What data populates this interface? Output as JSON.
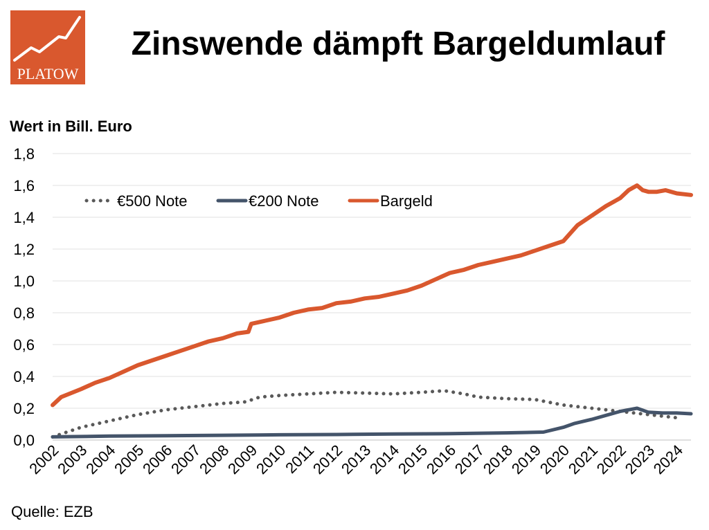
{
  "title": "Zinswende dämpft Bargeldumlauf",
  "logo": {
    "text": "PLATOW",
    "bg_color": "#D9582E"
  },
  "source": "Quelle: EZB",
  "chart_data": {
    "type": "line",
    "title": "Zinswende dämpft Bargeldumlauf",
    "ylabel": "Wert in Bill. Euro",
    "xlabel": "",
    "ylim": [
      0,
      1.8
    ],
    "yticks": [
      "0,0",
      "0,2",
      "0,4",
      "0,6",
      "0,8",
      "1,0",
      "1,2",
      "1,4",
      "1,6",
      "1,8"
    ],
    "xlim": [
      2002,
      2024.5
    ],
    "xticks": [
      "2002",
      "2003",
      "2004",
      "2005",
      "2006",
      "2007",
      "2008",
      "2009",
      "2010",
      "2011",
      "2012",
      "2013",
      "2014",
      "2015",
      "2016",
      "2017",
      "2018",
      "2019",
      "2020",
      "2021",
      "2022",
      "2023",
      "2024"
    ],
    "grid": "horizontal",
    "legend_position": "top-left",
    "series": [
      {
        "name": "€500 Note",
        "color": "#595959",
        "style": "dotted",
        "x": [
          2002,
          2002.5,
          2003,
          2004,
          2005,
          2006,
          2007,
          2008,
          2008.8,
          2009.3,
          2010,
          2011,
          2012,
          2013,
          2014,
          2015,
          2015.8,
          2016.5,
          2017,
          2018,
          2019,
          2020,
          2021,
          2022,
          2023,
          2024
        ],
        "y": [
          0.02,
          0.05,
          0.08,
          0.12,
          0.16,
          0.19,
          0.21,
          0.23,
          0.24,
          0.27,
          0.28,
          0.29,
          0.3,
          0.295,
          0.29,
          0.3,
          0.31,
          0.29,
          0.27,
          0.26,
          0.255,
          0.22,
          0.2,
          0.18,
          0.16,
          0.14
        ]
      },
      {
        "name": "€200 Note",
        "color": "#44546A",
        "style": "solid",
        "x": [
          2002,
          2004,
          2006,
          2008,
          2010,
          2012,
          2014,
          2016,
          2018,
          2019.3,
          2020,
          2020.4,
          2021,
          2021.6,
          2022,
          2022.6,
          2023,
          2023.5,
          2024,
          2024.5
        ],
        "y": [
          0.02,
          0.025,
          0.027,
          0.03,
          0.033,
          0.035,
          0.038,
          0.04,
          0.045,
          0.05,
          0.08,
          0.105,
          0.13,
          0.16,
          0.18,
          0.2,
          0.175,
          0.17,
          0.17,
          0.165
        ]
      },
      {
        "name": "Bargeld",
        "color": "#D9582E",
        "style": "solid",
        "x": [
          2002,
          2002.3,
          2003,
          2003.5,
          2004,
          2004.5,
          2005,
          2005.5,
          2006,
          2006.5,
          2007,
          2007.5,
          2008,
          2008.5,
          2008.9,
          2009,
          2009.5,
          2010,
          2010.5,
          2011,
          2011.5,
          2012,
          2012.5,
          2013,
          2013.5,
          2014,
          2014.5,
          2015,
          2015.5,
          2016,
          2016.5,
          2017,
          2017.5,
          2018,
          2018.5,
          2019,
          2019.5,
          2020,
          2020.2,
          2020.5,
          2021,
          2021.5,
          2022,
          2022.3,
          2022.6,
          2022.8,
          2023,
          2023.3,
          2023.6,
          2024,
          2024.5
        ],
        "y": [
          0.22,
          0.27,
          0.32,
          0.36,
          0.39,
          0.43,
          0.47,
          0.5,
          0.53,
          0.56,
          0.59,
          0.62,
          0.64,
          0.67,
          0.68,
          0.73,
          0.75,
          0.77,
          0.8,
          0.82,
          0.83,
          0.86,
          0.87,
          0.89,
          0.9,
          0.92,
          0.94,
          0.97,
          1.01,
          1.05,
          1.07,
          1.1,
          1.12,
          1.14,
          1.16,
          1.19,
          1.22,
          1.25,
          1.29,
          1.35,
          1.41,
          1.47,
          1.52,
          1.57,
          1.6,
          1.57,
          1.56,
          1.56,
          1.57,
          1.55,
          1.54
        ]
      }
    ]
  }
}
